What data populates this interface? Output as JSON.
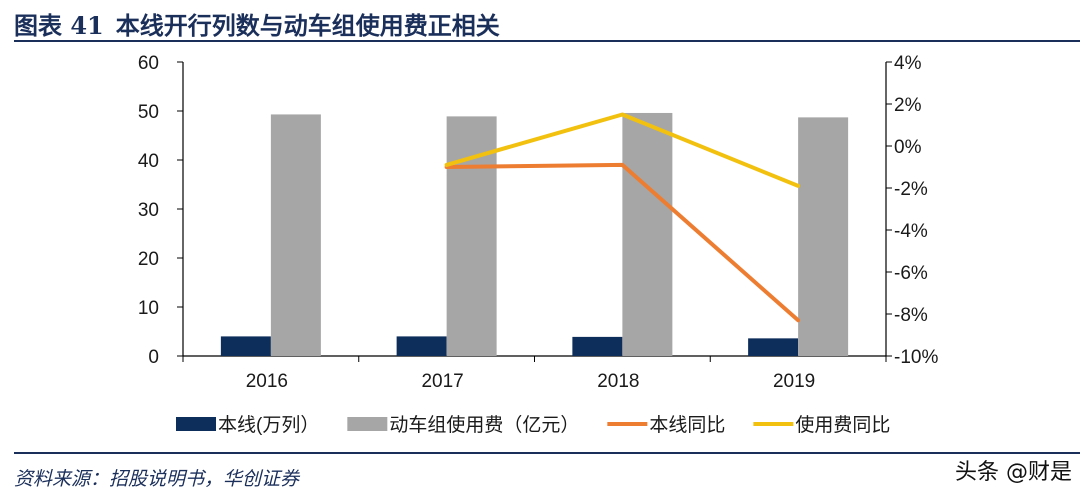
{
  "figure": {
    "number": "图表 41",
    "title": "本线开行列数与动车组使用费正相关"
  },
  "source": "资料来源：招股说明书，华创证券",
  "watermark": "头条 @财是",
  "chart_data": {
    "type": "bar",
    "categories": [
      "2016",
      "2017",
      "2018",
      "2019"
    ],
    "series": [
      {
        "name": "本线(万列）",
        "kind": "bar",
        "axis": "left",
        "color": "#0d2d5a",
        "values": [
          4.0,
          4.0,
          3.9,
          3.6
        ]
      },
      {
        "name": "动车组使用费（亿元）",
        "kind": "bar",
        "axis": "left",
        "color": "#a6a6a6",
        "values": [
          49.3,
          48.9,
          49.6,
          48.7
        ]
      },
      {
        "name": "本线同比",
        "kind": "line",
        "axis": "right",
        "color": "#ed7d31",
        "values": [
          null,
          -1.0,
          -0.9,
          -8.3
        ]
      },
      {
        "name": "使用费同比",
        "kind": "line",
        "axis": "right",
        "color": "#f2c10f",
        "values": [
          null,
          -0.9,
          1.5,
          -1.9
        ]
      }
    ],
    "left_axis": {
      "min": 0,
      "max": 60,
      "step": 10,
      "ticks": [
        "0",
        "10",
        "20",
        "30",
        "40",
        "50",
        "60"
      ]
    },
    "right_axis": {
      "min": -10,
      "max": 4,
      "step": 2,
      "ticks": [
        "-10%",
        "-8%",
        "-6%",
        "-4%",
        "-2%",
        "0%",
        "2%",
        "4%"
      ]
    },
    "legend_position": "bottom",
    "grid": false
  }
}
